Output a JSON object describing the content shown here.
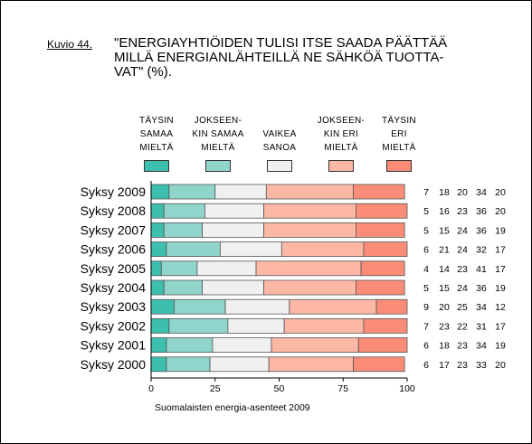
{
  "figure_label": "Kuvio 44.",
  "title_lines": [
    "\"ENERGIAYHTIÖIDEN TULISI ITSE SAADA PÄÄTTÄÄ",
    "MILLÄ ENERGIANLÄHTEILLÄ NE SÄHKÖÄ TUOTTA-",
    "VAT\" (%)."
  ],
  "source": "Suomalaisten energia-asenteet 2009",
  "legend": [
    {
      "lines": [
        "TÄYSIN",
        "SAMAA",
        "MIELTÄ"
      ],
      "color": "#3dbfae"
    },
    {
      "lines": [
        "JOKSEEN-",
        "KIN SAMAA",
        "MIELTÄ"
      ],
      "color": "#8fd5cc"
    },
    {
      "lines": [
        "VAIKEA",
        "SANOA"
      ],
      "color": "#f0f0f0"
    },
    {
      "lines": [
        "JOKSEEN-",
        "KIN ERI",
        "MIELTÄ"
      ],
      "color": "#fcb8a4"
    },
    {
      "lines": [
        "TÄYSIN",
        "ERI",
        "MIELTÄ"
      ],
      "color": "#fb8c78"
    }
  ],
  "chart_data": {
    "type": "bar",
    "orientation": "horizontal",
    "stacked": true,
    "categories": [
      "Syksy 2009",
      "Syksy 2008",
      "Syksy 2007",
      "Syksy 2006",
      "Syksy 2005",
      "Syksy 2004",
      "Syksy 2003",
      "Syksy 2002",
      "Syksy 2001",
      "Syksy 2000"
    ],
    "series": [
      {
        "name": "TÄYSIN SAMAA MIELTÄ",
        "values": [
          7,
          5,
          5,
          6,
          4,
          5,
          9,
          7,
          6,
          6
        ]
      },
      {
        "name": "JOKSEENKIN SAMAA MIELTÄ",
        "values": [
          18,
          16,
          15,
          21,
          14,
          15,
          20,
          23,
          18,
          17
        ]
      },
      {
        "name": "VAIKEA SANOA",
        "values": [
          20,
          23,
          24,
          24,
          23,
          24,
          25,
          22,
          23,
          23
        ]
      },
      {
        "name": "JOKSEENKIN ERI MIELTÄ",
        "values": [
          34,
          36,
          36,
          32,
          41,
          36,
          34,
          31,
          34,
          33
        ]
      },
      {
        "name": "TÄYSIN ERI MIELTÄ",
        "values": [
          20,
          20,
          19,
          17,
          17,
          19,
          12,
          17,
          19,
          20
        ]
      }
    ],
    "xlim": [
      0,
      100
    ],
    "xticks": [
      0,
      25,
      50,
      75,
      100
    ],
    "grid": false,
    "legend_position": "top"
  }
}
